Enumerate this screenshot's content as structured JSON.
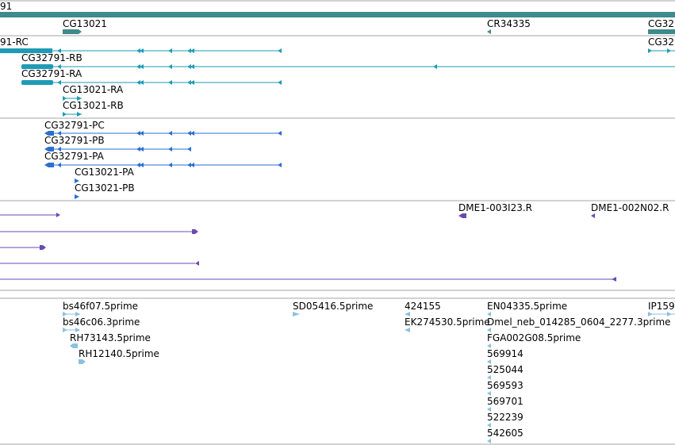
{
  "colors": {
    "gene": "#3f8a8a",
    "transcript": "#1e9bb5",
    "protein": "#2a6fd1",
    "clone": "#6b4ab0",
    "est": "#8bc1e0",
    "divider": "#a6a6a6",
    "labelText": "#000000"
  },
  "tracks": {
    "gene": {
      "cut_label": "91",
      "labels": [
        "CG13021",
        "CR34335",
        "CG32"
      ]
    },
    "transcripts": {
      "labels": [
        "91-RC",
        "CG32",
        "CG32791-RB",
        "CG32791-RA",
        "CG13021-RA",
        "CG13021-RB"
      ]
    },
    "proteins": {
      "labels": [
        "CG32791-PC",
        "CG32791-PB",
        "CG32791-PA",
        "CG13021-PA",
        "CG13021-PB"
      ]
    },
    "clones": {
      "labels": [
        "DME1-003I23.R",
        "DME1-002N02.R"
      ]
    },
    "ests": {
      "labels": [
        "bs46f07.5prime",
        "SD05416.5prime",
        "424155",
        "EN04335.5prime",
        "IP159",
        "bs46c06.3prime",
        "EK274530.5prime",
        "Dmel_neb_014285_0604_2277.3prime",
        "RH73143.5prime",
        "FGA002G08.5prime",
        "RH12140.5prime",
        "569914",
        "525044",
        "569593",
        "569701",
        "522239",
        "542605"
      ]
    }
  }
}
